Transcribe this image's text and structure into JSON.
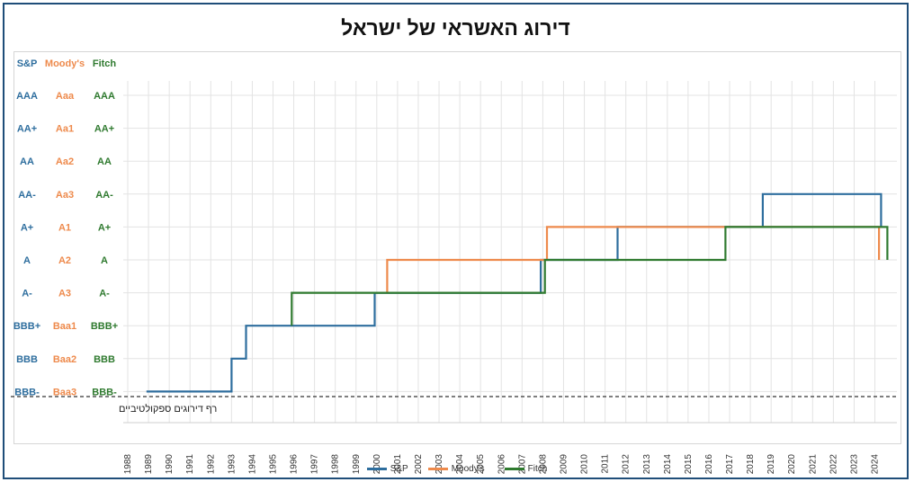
{
  "title": "דירוג האשראי של ישראל",
  "colors": {
    "sp": "#2e6e9e",
    "moodys": "#ee8a4c",
    "fitch": "#2f7a2f",
    "grid": "#e3e3e3"
  },
  "chart_data": {
    "type": "line",
    "step": true,
    "title": "דירוג האשראי של ישראל",
    "xlabel": "",
    "ylabel": "",
    "x_ticks": [
      1988,
      1989,
      1990,
      1991,
      1992,
      1993,
      1994,
      1995,
      1996,
      1997,
      1998,
      1999,
      2000,
      2001,
      2002,
      2003,
      2004,
      2005,
      2006,
      2007,
      2008,
      2009,
      2010,
      2011,
      2012,
      2013,
      2014,
      2015,
      2016,
      2017,
      2018,
      2019,
      2020,
      2021,
      2022,
      2023,
      2024
    ],
    "agency_headers": [
      "S&P",
      "Moody's",
      "Fitch"
    ],
    "ratings": {
      "sp": [
        "AAA",
        "AA+",
        "AA",
        "AA-",
        "A+",
        "A",
        "A-",
        "BBB+",
        "BBB",
        "BBB-"
      ],
      "moodys": [
        "Aaa",
        "Aa1",
        "Aa2",
        "Aa3",
        "A1",
        "A2",
        "A3",
        "Baa1",
        "Baa2",
        "Baa3"
      ],
      "fitch": [
        "AAA",
        "AA+",
        "AA",
        "AA-",
        "A+",
        "A",
        "A-",
        "BBB+",
        "BBB",
        "BBB-"
      ]
    },
    "speculative_label": "רף דירוגים ספקולטיביים",
    "grid": true,
    "legend_position": "bottom",
    "series": [
      {
        "name": "S&P",
        "key": "sp",
        "points": [
          [
            1988.9,
            "BBB-"
          ],
          [
            1993.0,
            "BBB-"
          ],
          [
            1993.0,
            "BBB"
          ],
          [
            1993.7,
            "BBB"
          ],
          [
            1993.7,
            "BBB+"
          ],
          [
            1999.9,
            "BBB+"
          ],
          [
            1999.9,
            "A-"
          ],
          [
            2007.9,
            "A-"
          ],
          [
            2007.9,
            "A"
          ],
          [
            2011.6,
            "A"
          ],
          [
            2011.6,
            "A+"
          ],
          [
            2018.6,
            "A+"
          ],
          [
            2018.6,
            "AA-"
          ],
          [
            2024.3,
            "AA-"
          ],
          [
            2024.3,
            "A+"
          ]
        ]
      },
      {
        "name": "Moody's",
        "key": "moodys",
        "points": [
          [
            2000.5,
            "A-"
          ],
          [
            2000.5,
            "A"
          ],
          [
            2008.2,
            "A"
          ],
          [
            2008.2,
            "A+"
          ],
          [
            2024.2,
            "A+"
          ],
          [
            2024.2,
            "A"
          ]
        ]
      },
      {
        "name": "Fitch",
        "key": "fitch",
        "points": [
          [
            1995.9,
            "BBB+"
          ],
          [
            1995.9,
            "A-"
          ],
          [
            2008.1,
            "A-"
          ],
          [
            2008.1,
            "A"
          ],
          [
            2016.8,
            "A"
          ],
          [
            2016.8,
            "A+"
          ],
          [
            2024.6,
            "A+"
          ],
          [
            2024.6,
            "A"
          ]
        ]
      }
    ]
  }
}
